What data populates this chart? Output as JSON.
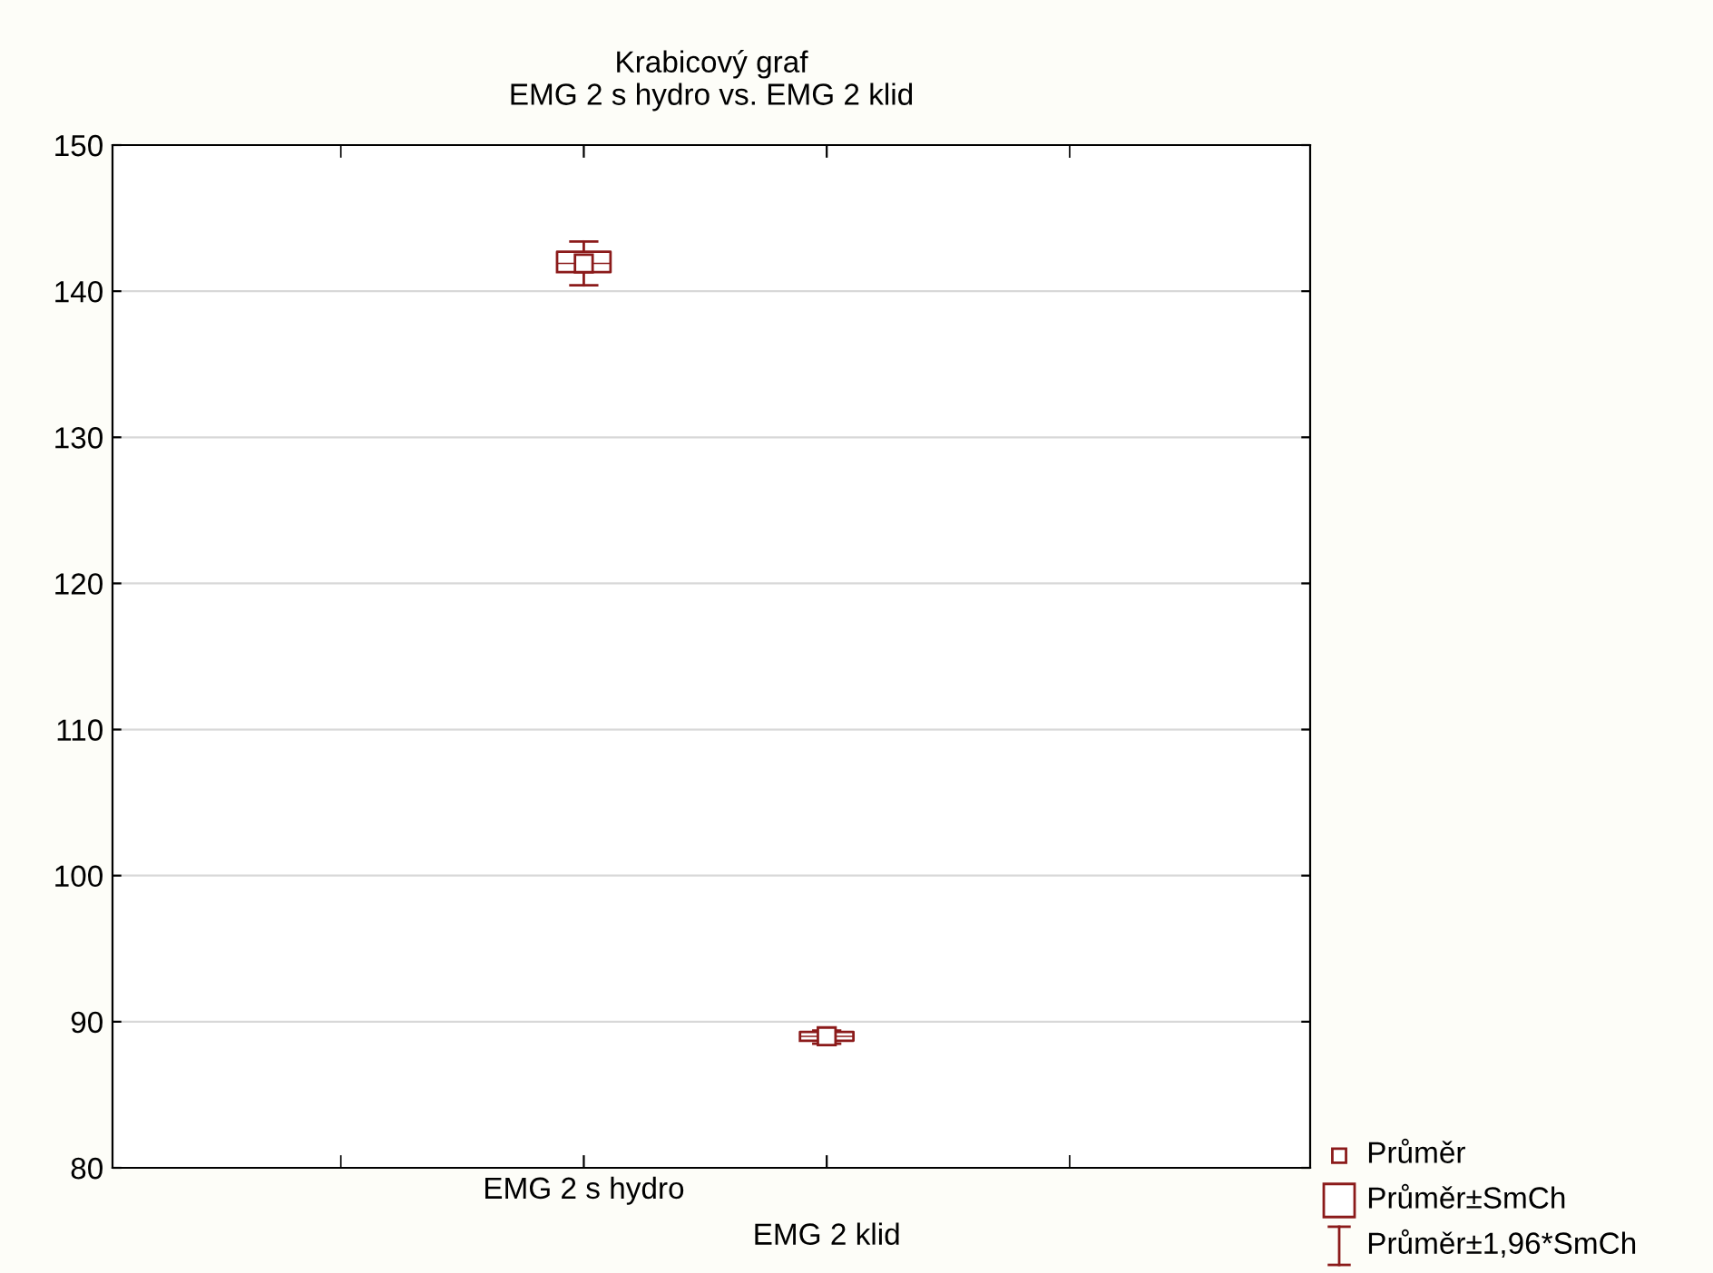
{
  "chart_data": {
    "type": "box",
    "title": "Krabicový graf\nEMG 2 s hydro vs. EMG 2 klid",
    "categories": [
      "EMG 2 s hydro",
      "EMG 2 klid"
    ],
    "series": [
      {
        "color": "#8b1a1a",
        "boxes": [
          {
            "low": 140.4,
            "q1": 141.3,
            "median": 141.9,
            "q3": 142.7,
            "high": 143.4,
            "mean": 141.9
          },
          {
            "low": 88.5,
            "q1": 88.7,
            "median": 89.0,
            "q3": 89.3,
            "high": 89.4,
            "mean": 89.0
          }
        ]
      }
    ],
    "ylim": [
      80,
      150
    ],
    "yticks": [
      80,
      90,
      100,
      110,
      120,
      130,
      140,
      150
    ],
    "grid": "y",
    "marker": "square",
    "annotations": [
      "Průměr",
      "Průměr±SmCh",
      "Průměr±1,96*SmCh"
    ]
  }
}
